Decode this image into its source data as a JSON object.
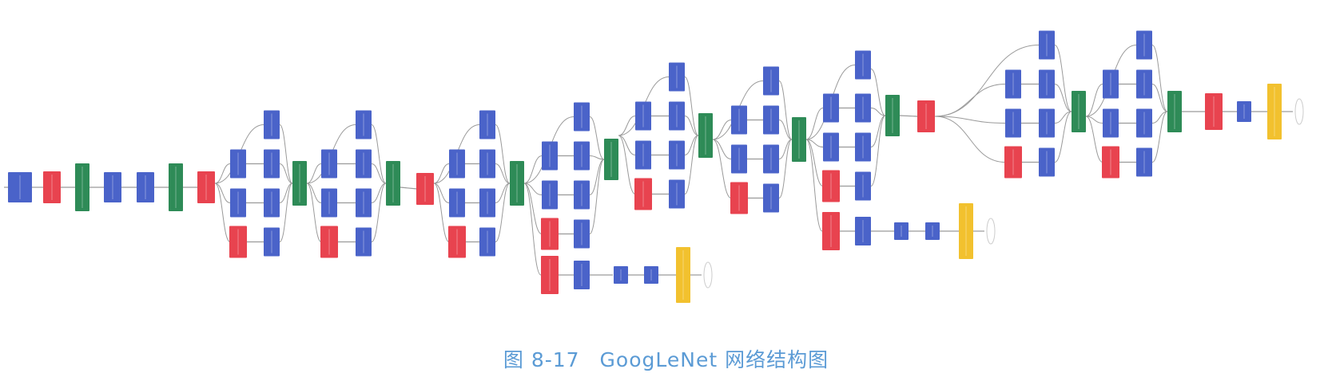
{
  "caption": {
    "figure_number": "图 8-17",
    "title": "GoogLeNet 网络结构图"
  },
  "colors": {
    "conv": "#4a63c9",
    "pool": "#e8434f",
    "concat_norm": "#2e8b57",
    "softmax": "#f2c12e",
    "edge": "#9a9a9a",
    "caption": "#5b9bd5"
  },
  "legend_semantics": {
    "blue": "convolution / fully-connected",
    "red": "pooling",
    "green": "concat / normalization",
    "yellow": "softmax"
  }
}
